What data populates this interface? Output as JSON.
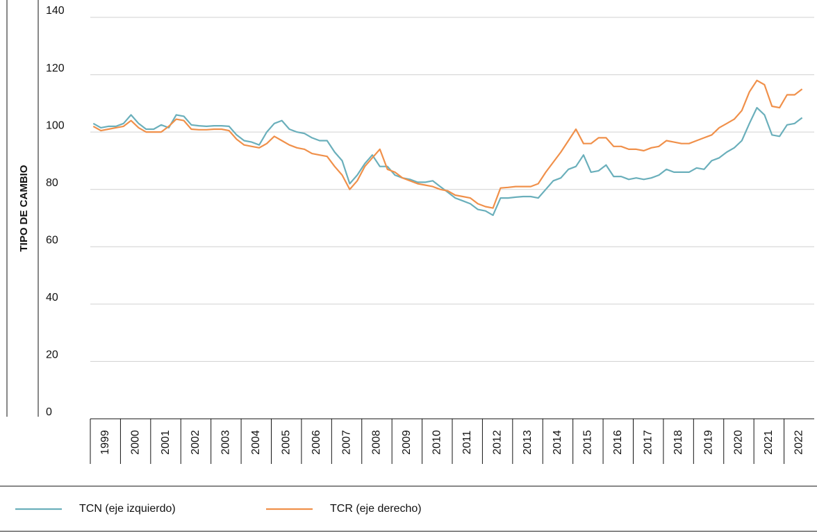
{
  "chart_data": {
    "type": "line",
    "y_label": "TIPO DE CAMBIO",
    "x": [
      1999.1,
      1999.35,
      1999.6,
      1999.85,
      2000.1,
      2000.35,
      2000.6,
      2000.85,
      2001.1,
      2001.35,
      2001.6,
      2001.85,
      2002.1,
      2002.35,
      2002.6,
      2002.85,
      2003.1,
      2003.35,
      2003.6,
      2003.85,
      2004.1,
      2004.35,
      2004.6,
      2004.85,
      2005.1,
      2005.35,
      2005.6,
      2005.85,
      2006.1,
      2006.35,
      2006.6,
      2006.85,
      2007.1,
      2007.35,
      2007.6,
      2007.85,
      2008.1,
      2008.35,
      2008.6,
      2008.85,
      2009.1,
      2009.35,
      2009.6,
      2009.85,
      2010.1,
      2010.35,
      2010.6,
      2010.85,
      2011.1,
      2011.35,
      2011.6,
      2011.85,
      2012.1,
      2012.35,
      2012.6,
      2012.85,
      2013.1,
      2013.35,
      2013.6,
      2013.85,
      2014.1,
      2014.35,
      2014.6,
      2014.85,
      2015.1,
      2015.35,
      2015.6,
      2015.85,
      2016.1,
      2016.35,
      2016.6,
      2016.85,
      2017.1,
      2017.35,
      2017.6,
      2017.85,
      2018.1,
      2018.35,
      2018.6,
      2018.85,
      2019.1,
      2019.35,
      2019.6,
      2019.85,
      2020.1,
      2020.35,
      2020.6,
      2020.85,
      2021.1,
      2021.35,
      2021.6,
      2021.85,
      2022.1,
      2022.35,
      2022.6
    ],
    "series": [
      {
        "name": "TCN (eje izquierdo)",
        "color": "#6aafbb",
        "values": [
          103,
          101.5,
          102,
          102,
          103,
          106,
          103,
          101,
          101,
          102.5,
          101.5,
          106,
          105.5,
          102.5,
          102.2,
          102,
          102.2,
          102.2,
          102,
          99,
          97,
          96.5,
          95.5,
          100,
          103,
          104,
          101,
          100,
          99.5,
          98,
          97,
          97,
          93,
          90,
          82,
          85,
          89,
          92,
          88,
          88,
          85,
          84,
          83.5,
          82.5,
          82.5,
          83,
          81,
          79,
          77,
          76,
          75,
          73,
          72.5,
          71,
          77,
          77,
          77.3,
          77.5,
          77.5,
          77,
          80,
          83,
          84,
          87,
          88,
          92,
          86,
          86.5,
          88.5,
          84.5,
          84.5,
          83.5,
          84,
          83.5,
          84,
          85,
          87,
          86,
          86,
          86,
          87.5,
          87,
          90,
          91,
          93,
          94.5,
          97,
          103,
          108.5,
          106,
          99,
          98.5,
          102.5,
          103,
          105
        ]
      },
      {
        "name": "TCR (eje derecho)",
        "color": "#f0904a",
        "values": [
          102,
          100.5,
          101,
          101.5,
          102,
          104,
          101.5,
          100,
          100,
          100,
          102,
          104.5,
          104,
          101,
          100.8,
          100.8,
          101,
          101,
          100.5,
          97.5,
          95.5,
          95,
          94.5,
          96,
          98.5,
          97,
          95.5,
          94.5,
          94,
          92.5,
          92,
          91.5,
          88,
          85,
          80,
          83,
          88,
          91,
          94,
          87,
          86,
          84,
          83,
          82,
          81.5,
          81,
          80,
          79.5,
          78,
          77.5,
          77,
          75,
          74,
          73.5,
          80.5,
          80.7,
          81,
          81,
          81,
          82,
          86,
          89.5,
          93,
          97,
          101,
          96,
          96,
          98,
          98,
          95,
          95,
          94,
          94,
          93.5,
          94.5,
          95,
          97,
          96.5,
          96,
          96,
          97,
          98,
          99,
          101.5,
          103,
          104.5,
          107.5,
          114,
          118,
          116.5,
          109,
          108.5,
          113,
          113,
          115
        ]
      }
    ],
    "xlim": [
      1999,
      2023
    ],
    "xticks": [
      1999,
      2000,
      2001,
      2002,
      2003,
      2004,
      2005,
      2006,
      2007,
      2008,
      2009,
      2010,
      2011,
      2012,
      2013,
      2014,
      2015,
      2016,
      2017,
      2018,
      2019,
      2020,
      2021,
      2022
    ],
    "ylim": [
      0,
      140
    ],
    "yticks": [
      0,
      20,
      40,
      60,
      80,
      100,
      120,
      140
    ],
    "grid": true,
    "legend": "bottom"
  }
}
